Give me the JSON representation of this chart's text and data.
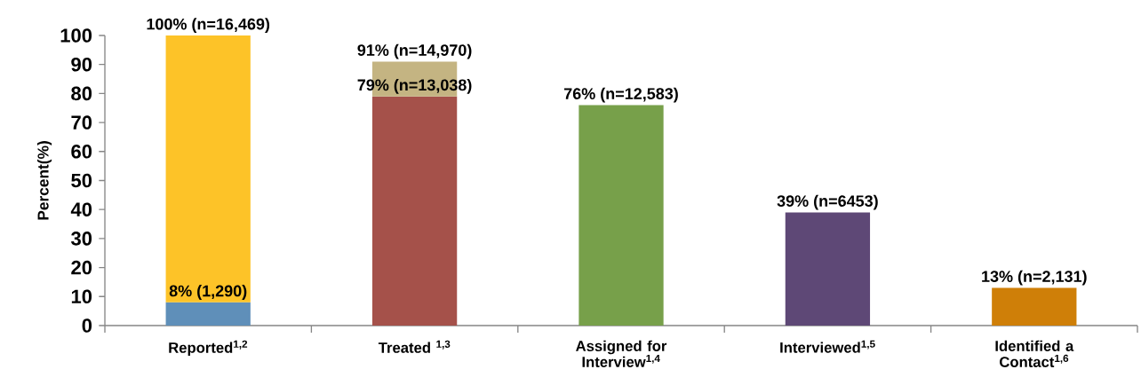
{
  "chart_data": {
    "type": "bar",
    "stacked": true,
    "ylabel": "Percent(%)",
    "categories": [
      "Reported$^{1,2}$",
      "Treated $^{1,3}$",
      "Assigned for Interview$^{1,4}$",
      "Interviewed$^{1,5}$",
      "Identified a Contact$^{1,6}$"
    ],
    "series": [
      {
        "colors": [
          "#5f8fb9",
          "#a5514a",
          "#77a04a",
          "#5e4876",
          "#cf7f08"
        ],
        "values": [
          8,
          79,
          76,
          39,
          13
        ],
        "value_labels": [
          "8% (1,290)",
          "79% (n=13,038)",
          "76% (n=12,583)",
          "39% (n=6453)",
          "13% (n=2,131)"
        ]
      },
      {
        "colors": [
          "#fdc328",
          "#c4b482",
          null,
          null,
          null
        ],
        "values": [
          92,
          12,
          null,
          null,
          null
        ]
      }
    ],
    "totals": [
      "100% (n=16,469)",
      "91% (n=14,970)",
      null,
      null,
      null
    ],
    "ylim": [
      0,
      100
    ],
    "yticks": [
      0,
      10,
      20,
      30,
      40,
      50,
      60,
      70,
      80,
      90,
      100
    ]
  }
}
